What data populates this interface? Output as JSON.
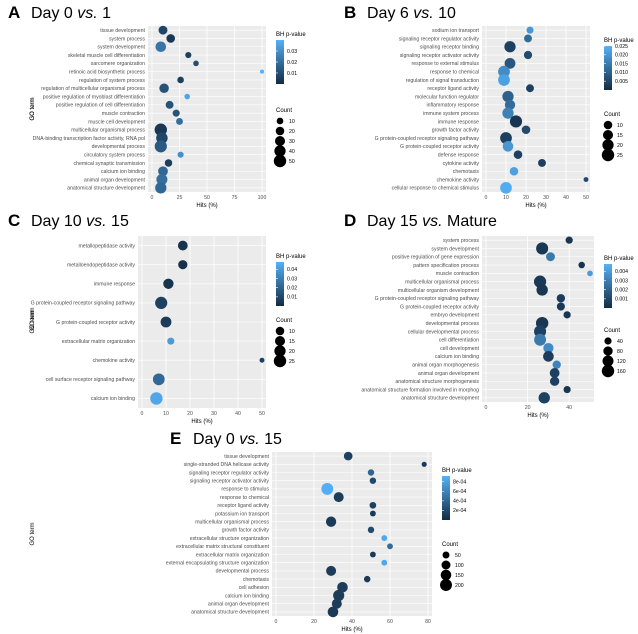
{
  "figure": {
    "ylabel": "GO term",
    "xlabel": "Hits (%)",
    "color_legend_title": "BH p-value",
    "size_legend_title": "Count",
    "colors": {
      "low": "#132b43",
      "high": "#56b1f7",
      "panel_bg": "#ebebeb",
      "grid": "#ffffff"
    }
  },
  "chart_data": [
    {
      "letter": "A",
      "title_pre": "Day 0 ",
      "title_vs": "vs.",
      "title_post": " 1",
      "type": "scatter",
      "xlim": [
        0,
        100
      ],
      "xticks": [
        "0",
        "25",
        "50",
        "75",
        "100"
      ],
      "p_range": [
        0,
        0.04
      ],
      "p_ticks": [
        "0.03",
        "0.02",
        "0.01"
      ],
      "p_tick_values": [
        0.03,
        0.02,
        0.01
      ],
      "count_range": [
        0,
        50
      ],
      "count_ticks": [
        "10",
        "20",
        "30",
        "40",
        "50"
      ],
      "count_tick_values": [
        10,
        20,
        30,
        40,
        50
      ],
      "terms": [
        "tissue development",
        "system process",
        "system development",
        "skeletal muscle cell differentiation",
        "sarcomere organization",
        "retinoic acid biosynthetic process",
        "regulation of system process",
        "regulation of multicellular organismal process",
        "positive regulation of myoblast differentiation",
        "positive regulation of cell differentiation",
        "muscle contraction",
        "muscle cell development",
        "multicellular organismal process",
        "DNA-binding transcription factor activity, RNA pol",
        "developmental process",
        "circulatory system process",
        "chemical synaptic transmission",
        "calcium ion binding",
        "animal organ development",
        "anatomical structure development"
      ],
      "x": [
        10,
        17,
        8,
        33,
        40,
        100,
        26,
        11,
        32,
        16,
        22,
        25,
        8,
        9,
        8,
        26,
        15,
        10,
        9,
        8
      ],
      "p": [
        0.008,
        0.004,
        0.022,
        0.006,
        0.01,
        0.04,
        0.006,
        0.012,
        0.036,
        0.012,
        0.012,
        0.02,
        0.004,
        0.008,
        0.014,
        0.03,
        0.006,
        0.018,
        0.02,
        0.018
      ],
      "count": [
        22,
        20,
        34,
        8,
        6,
        2,
        10,
        26,
        6,
        16,
        12,
        11,
        50,
        42,
        48,
        8,
        14,
        28,
        38,
        40
      ]
    },
    {
      "letter": "B",
      "title_pre": "Day 6 ",
      "title_vs": "vs.",
      "title_post": " 10",
      "type": "scatter",
      "xlim": [
        0,
        50
      ],
      "xticks": [
        "0",
        "10",
        "20",
        "30",
        "40",
        "50"
      ],
      "p_range": [
        0,
        0.025
      ],
      "p_ticks": [
        "0.025",
        "0.020",
        "0.015",
        "0.010",
        "0.005"
      ],
      "p_tick_values": [
        0.025,
        0.02,
        0.015,
        0.01,
        0.005
      ],
      "count_range": [
        0,
        25
      ],
      "count_ticks": [
        "10",
        "15",
        "20",
        "25"
      ],
      "count_tick_values": [
        10,
        15,
        20,
        25
      ],
      "terms": [
        "sodium ion transport",
        "signaling receptor regulator activity",
        "signaling receptor binding",
        "signaling receptor activator activity",
        "response to external stimulus",
        "response to chemical",
        "regulation of signal transduction",
        "receptor ligand activity",
        "molecular function regulator",
        "inflammatory response",
        "immune system process",
        "immune response",
        "growth factor activity",
        "G protein-coupled receptor signaling pathway",
        "G protein-coupled receptor activity",
        "defense response",
        "cytokine activity",
        "chemotaxis",
        "chemokine activity",
        "cellular response to chemical stimulus"
      ],
      "x": [
        22,
        21,
        12,
        21,
        12,
        9,
        9,
        22,
        11,
        12,
        11,
        15,
        20,
        10,
        11,
        16,
        28,
        14,
        50,
        10
      ],
      "p": [
        0.02,
        0.012,
        0.004,
        0.006,
        0.008,
        0.018,
        0.022,
        0.004,
        0.01,
        0.012,
        0.016,
        0.002,
        0.006,
        0.004,
        0.02,
        0.004,
        0.004,
        0.022,
        0.006,
        0.024
      ],
      "count": [
        6,
        8,
        20,
        9,
        18,
        22,
        22,
        8,
        20,
        16,
        20,
        24,
        10,
        22,
        17,
        10,
        8,
        10,
        2,
        22
      ]
    },
    {
      "letter": "C",
      "title_pre": "Day 10 ",
      "title_vs": "vs.",
      "title_post": " 15",
      "type": "scatter",
      "xlim": [
        0,
        50
      ],
      "xticks": [
        "0",
        "10",
        "20",
        "30",
        "40",
        "50"
      ],
      "p_range": [
        0,
        0.048
      ],
      "p_ticks": [
        "0.04",
        "0.03",
        "0.02",
        "0.01"
      ],
      "p_tick_values": [
        0.04,
        0.03,
        0.02,
        0.01
      ],
      "count_range": [
        0,
        25
      ],
      "count_ticks": [
        "10",
        "15",
        "20",
        "25"
      ],
      "count_tick_values": [
        10,
        15,
        20,
        25
      ],
      "terms": [
        "metallopeptidase activity",
        "metalloendopeptidase activity",
        "immune response",
        "G protein-coupled receptor signaling pathway",
        "G protein-coupled receptor activity",
        "extracellular matrix organization",
        "chemokine activity",
        "cell surface receptor signaling pathway",
        "calcium ion binding"
      ],
      "x": [
        17,
        17,
        11,
        8,
        10,
        12,
        50,
        7,
        6
      ],
      "p": [
        0.003,
        0.002,
        0.003,
        0.008,
        0.006,
        0.04,
        0.008,
        0.022,
        0.044
      ],
      "count": [
        14,
        12,
        16,
        24,
        18,
        6,
        2,
        22,
        25
      ]
    },
    {
      "letter": "D",
      "title_pre": "Day 15 ",
      "title_vs": "vs.",
      "title_post": " Mature",
      "type": "scatter",
      "xlim": [
        0,
        50
      ],
      "xticks": [
        "0",
        "20",
        "40"
      ],
      "p_range": [
        0,
        0.0048
      ],
      "p_ticks": [
        "0.004",
        "0.003",
        "0.002",
        "0.001"
      ],
      "p_tick_values": [
        0.004,
        0.003,
        0.002,
        0.001
      ],
      "count_range": [
        0,
        160
      ],
      "count_ticks": [
        "40",
        "80",
        "120",
        "160"
      ],
      "count_tick_values": [
        40,
        80,
        120,
        160
      ],
      "terms": [
        "system process",
        "system development",
        "positive regulation of gene expression",
        "pattern specification process",
        "muscle contraction",
        "multicellular organismal process",
        "multicellular organism development",
        "G protein-coupled receptor signaling pathway",
        "G protein-coupled receptor activity",
        "embryo development",
        "developmental process",
        "cellular developmental process",
        "cell differentiation",
        "cell development",
        "calcium ion binding",
        "animal organ morphogenesis",
        "animal organ development",
        "anatomical structure morphogenesis",
        "anatomical structure formation involved in morphog",
        "anatomical structure development"
      ],
      "x": [
        40,
        27,
        31,
        46,
        50,
        26,
        27,
        36,
        36,
        39,
        27,
        26,
        26,
        30,
        30,
        34,
        33,
        33,
        39,
        28
      ],
      "p": [
        0.0004,
        0.0004,
        0.0028,
        0.0003,
        0.004,
        0.0005,
        0.0004,
        0.0006,
        0.0005,
        0.0004,
        0.0004,
        0.0008,
        0.0028,
        0.0034,
        0.0006,
        0.0032,
        0.0008,
        0.0008,
        0.0004,
        0.0008
      ],
      "count": [
        40,
        150,
        70,
        30,
        20,
        155,
        130,
        60,
        55,
        40,
        160,
        150,
        145,
        100,
        110,
        60,
        90,
        80,
        40,
        130
      ]
    },
    {
      "letter": "E",
      "title_pre": "Day 0 ",
      "title_vs": "vs.",
      "title_post": " 15",
      "type": "scatter",
      "xlim": [
        0,
        80
      ],
      "xticks": [
        "0",
        "20",
        "40",
        "60",
        "80"
      ],
      "p_range": [
        0,
        0.00092
      ],
      "p_ticks": [
        "8e-04",
        "6e-04",
        "4e-04",
        "2e-04"
      ],
      "p_tick_values": [
        0.0008,
        0.0006,
        0.0004,
        0.0002
      ],
      "count_range": [
        0,
        220
      ],
      "count_ticks": [
        "50",
        "100",
        "150",
        "200"
      ],
      "count_tick_values": [
        50,
        100,
        150,
        200
      ],
      "terms": [
        "tissue development",
        "single-stranded DNA helicase activity",
        "signaling receptor regulator activity",
        "signaling receptor activator activity",
        "response to stimulus",
        "response to chemical",
        "receptor ligand activity",
        "potassium ion transport",
        "multicellular organismal process",
        "growth factor activity",
        "extracellular structure organization",
        "extracellular matrix structural constituent",
        "extracellular matrix organization",
        "external encapsulating structure organization",
        "developmental process",
        "chemotaxis",
        "cell adhesion",
        "calcium ion binding",
        "animal organ development",
        "anatomical structure development"
      ],
      "x": [
        38,
        78,
        50,
        51,
        27,
        33,
        51,
        51,
        29,
        50,
        57,
        60,
        51,
        57,
        29,
        48,
        35,
        33,
        32,
        30
      ],
      "p": [
        0.00015,
        0.0001,
        0.0004,
        0.0002,
        0.0009,
        0.00012,
        0.00015,
        0.0001,
        0.0001,
        0.0002,
        0.00085,
        0.00045,
        0.0001,
        0.00085,
        0.00012,
        0.0001,
        0.00012,
        0.00012,
        0.00012,
        0.0001
      ],
      "count": [
        90,
        20,
        40,
        40,
        200,
        130,
        45,
        30,
        140,
        40,
        30,
        30,
        30,
        30,
        130,
        40,
        150,
        170,
        130,
        150
      ]
    }
  ]
}
